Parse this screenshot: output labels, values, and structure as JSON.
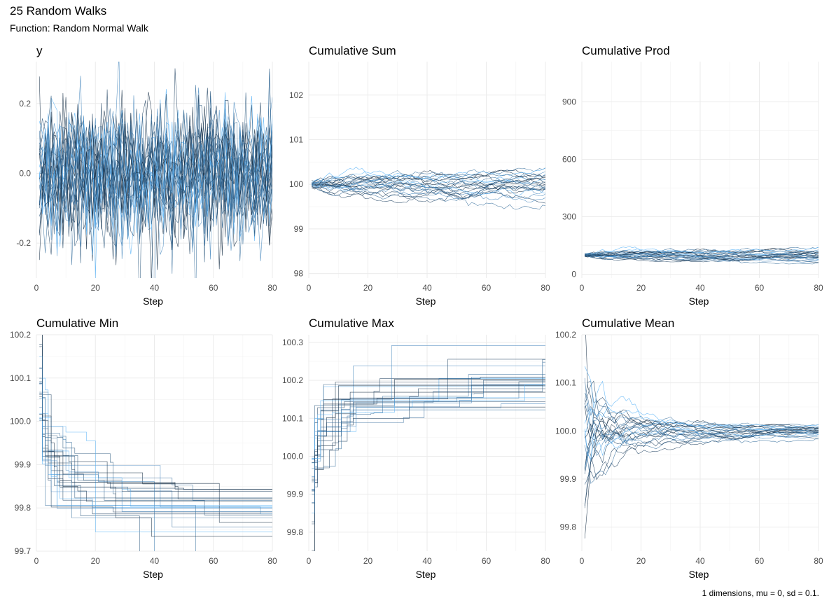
{
  "header": {
    "title": "25 Random Walks",
    "subtitle": "Function: Random Normal Walk"
  },
  "caption": "1 dimensions, mu = 0, sd = 0.1.",
  "series_colors": [
    "#132b43",
    "#1f4160",
    "#2b587e",
    "#38709e",
    "#4687bd",
    "#56b1f7"
  ],
  "chart_data": [
    {
      "type": "line",
      "title": "y",
      "xlabel": "Step",
      "ylabel": "",
      "xlim": [
        0,
        80
      ],
      "ylim": [
        -0.3,
        0.32
      ],
      "xticks": [
        0,
        20,
        40,
        60,
        80
      ],
      "yticks": [
        -0.2,
        0.0,
        0.2
      ],
      "ytick_labels": [
        "-0.2",
        "0.0",
        "0.2"
      ],
      "n_series": 25,
      "n_steps": 80,
      "grid": true,
      "legend": "none"
    },
    {
      "type": "line",
      "title": "Cumulative Sum",
      "xlabel": "Step",
      "ylabel": "",
      "xlim": [
        0,
        80
      ],
      "ylim": [
        97.9,
        102.75
      ],
      "xticks": [
        0,
        20,
        40,
        60,
        80
      ],
      "yticks": [
        98,
        99,
        100,
        101,
        102
      ],
      "ytick_labels": [
        "98",
        "99",
        "100",
        "101",
        "102"
      ],
      "n_series": 25,
      "n_steps": 80,
      "grid": true,
      "legend": "none"
    },
    {
      "type": "line",
      "title": "Cumulative Prod",
      "xlabel": "Step",
      "ylabel": "",
      "xlim": [
        0,
        80
      ],
      "ylim": [
        -20,
        1110
      ],
      "xticks": [
        0,
        20,
        40,
        60,
        80
      ],
      "yticks": [
        0,
        300,
        600,
        900
      ],
      "ytick_labels": [
        "0",
        "300",
        "600",
        "900"
      ],
      "n_series": 25,
      "n_steps": 80,
      "grid": true,
      "legend": "none"
    },
    {
      "type": "line",
      "title": "Cumulative Min",
      "xlabel": "Step",
      "ylabel": "",
      "xlim": [
        0,
        80
      ],
      "ylim": [
        99.7,
        100.2
      ],
      "xticks": [
        0,
        20,
        40,
        60,
        80
      ],
      "yticks": [
        99.7,
        99.8,
        99.9,
        100.0,
        100.1,
        100.2
      ],
      "ytick_labels": [
        "99.7",
        "99.8",
        "99.9",
        "100.0",
        "100.1",
        "100.2"
      ],
      "n_series": 25,
      "n_steps": 80,
      "grid": true,
      "legend": "none"
    },
    {
      "type": "line",
      "title": "Cumulative Max",
      "xlabel": "Step",
      "ylabel": "",
      "xlim": [
        0,
        80
      ],
      "ylim": [
        99.75,
        100.32
      ],
      "xticks": [
        0,
        20,
        40,
        60,
        80
      ],
      "yticks": [
        99.8,
        99.9,
        100.0,
        100.1,
        100.2,
        100.3
      ],
      "ytick_labels": [
        "99.8",
        "99.9",
        "100.0",
        "100.1",
        "100.2",
        "100.3"
      ],
      "n_series": 25,
      "n_steps": 80,
      "grid": true,
      "legend": "none"
    },
    {
      "type": "line",
      "title": "Cumulative Mean",
      "xlabel": "Step",
      "ylabel": "",
      "xlim": [
        0,
        80
      ],
      "ylim": [
        99.75,
        100.2
      ],
      "xticks": [
        0,
        20,
        40,
        60,
        80
      ],
      "yticks": [
        99.8,
        99.9,
        100.0,
        100.1,
        100.2
      ],
      "ytick_labels": [
        "99.8",
        "99.9",
        "100.0",
        "100.1",
        "100.2"
      ],
      "n_series": 25,
      "n_steps": 80,
      "grid": true,
      "legend": "none"
    }
  ]
}
